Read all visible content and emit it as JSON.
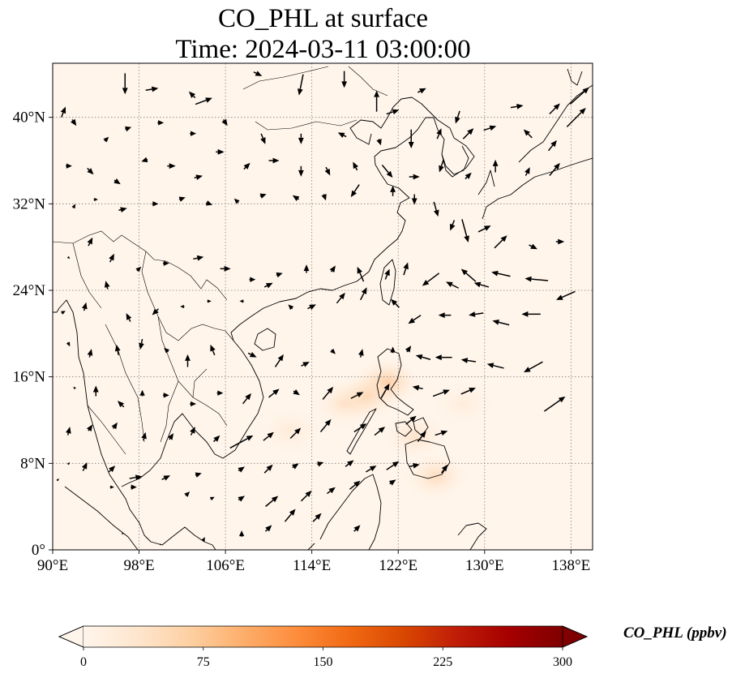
{
  "title": {
    "line1": "CO_PHL at surface",
    "line2": "Time: 2024-03-11 03:00:00"
  },
  "map": {
    "projection": "PlateCarree",
    "lon_range": [
      90,
      140
    ],
    "lat_range": [
      0,
      45
    ],
    "gridlines": "dotted",
    "lon_ticks": [
      {
        "value": 90,
        "label": "90°E"
      },
      {
        "value": 98,
        "label": "98°E"
      },
      {
        "value": 106,
        "label": "106°E"
      },
      {
        "value": 114,
        "label": "114°E"
      },
      {
        "value": 122,
        "label": "122°E"
      },
      {
        "value": 130,
        "label": "130°E"
      },
      {
        "value": 138,
        "label": "138°E"
      }
    ],
    "lat_ticks": [
      {
        "value": 0,
        "label": "0°"
      },
      {
        "value": 8,
        "label": "8°N"
      },
      {
        "value": 16,
        "label": "16°N"
      },
      {
        "value": 24,
        "label": "24°N"
      },
      {
        "value": 32,
        "label": "32°N"
      },
      {
        "value": 40,
        "label": "40°N"
      }
    ],
    "background_color": "#fff5eb",
    "coast_color": "#000000",
    "plumes": [
      {
        "lon": 121.0,
        "lat": 15.5,
        "strength": 0.55
      },
      {
        "lon": 119.0,
        "lat": 14.2,
        "strength": 0.4
      },
      {
        "lon": 117.0,
        "lat": 13.5,
        "strength": 0.25
      },
      {
        "lon": 125.5,
        "lat": 6.8,
        "strength": 0.35
      },
      {
        "lon": 123.5,
        "lat": 10.5,
        "strength": 0.25
      },
      {
        "lon": 112.0,
        "lat": 11.0,
        "strength": 0.15
      },
      {
        "lon": 128.0,
        "lat": 13.5,
        "strength": 0.12
      }
    ]
  },
  "wind_vectors": [
    [
      96.7,
      43.1,
      0,
      -1
    ],
    [
      99.2,
      42.6,
      0.6,
      0.1
    ],
    [
      102.9,
      42.1,
      -0.3,
      0.3
    ],
    [
      104,
      41.5,
      0.8,
      0.3
    ],
    [
      109,
      44,
      0.4,
      -0.2
    ],
    [
      113,
      43,
      -0.2,
      -1
    ],
    [
      117,
      43.5,
      0,
      -0.8
    ],
    [
      120,
      41.5,
      0,
      1
    ],
    [
      121.5,
      40.5,
      0.6,
      0.2
    ],
    [
      124.2,
      42.5,
      0.4,
      0.2
    ],
    [
      127.5,
      40,
      -0.2,
      -0.6
    ],
    [
      133,
      41,
      0.6,
      0.1
    ],
    [
      136.5,
      40.8,
      0.5,
      0.5
    ],
    [
      138.5,
      40,
      0.9,
      0.9
    ],
    [
      138.8,
      42,
      0.9,
      0.8
    ],
    [
      91,
      40.5,
      0.2,
      0.5
    ],
    [
      92,
      39.5,
      0.2,
      -0.3
    ],
    [
      95,
      38,
      0.2,
      0.2
    ],
    [
      97,
      39,
      0.3,
      0.1
    ],
    [
      100,
      39.5,
      0.3,
      0
    ],
    [
      103,
      38.5,
      0.3,
      0
    ],
    [
      106,
      39.5,
      0.2,
      -0.3
    ],
    [
      109.5,
      38,
      0.2,
      -0.5
    ],
    [
      113,
      38,
      0,
      -0.5
    ],
    [
      116.8,
      38.4,
      -0.4,
      0.2
    ],
    [
      120.3,
      37.7,
      0.1,
      -0.3
    ],
    [
      123.2,
      38,
      0,
      -0.9
    ],
    [
      125.8,
      38.5,
      0.2,
      0.5
    ],
    [
      128.5,
      38.5,
      0.5,
      0.5
    ],
    [
      130.5,
      39,
      0.6,
      0.2
    ],
    [
      134,
      38.5,
      -0.4,
      0.4
    ],
    [
      136.3,
      37.4,
      0.4,
      0.5
    ],
    [
      91.5,
      35.5,
      0.3,
      0
    ],
    [
      93.5,
      35,
      0.3,
      -0.3
    ],
    [
      96,
      34,
      0.3,
      -0.2
    ],
    [
      98.5,
      36,
      -0.3,
      -0.1
    ],
    [
      101,
      35.5,
      0.4,
      0
    ],
    [
      103.5,
      34.5,
      0.4,
      0.1
    ],
    [
      105.5,
      36.8,
      0.4,
      0
    ],
    [
      108,
      35.5,
      0.3,
      0.3
    ],
    [
      110.5,
      36,
      0.5,
      0
    ],
    [
      113,
      35,
      0,
      -0.5
    ],
    [
      115.5,
      35,
      0.2,
      -0.4
    ],
    [
      118,
      35.5,
      -0.2,
      0.4
    ],
    [
      121,
      35,
      0.5,
      -0.6
    ],
    [
      123.5,
      34.5,
      0.5,
      0
    ],
    [
      126,
      35.5,
      -0.2,
      -0.6
    ],
    [
      128.5,
      34.6,
      0.3,
      0.3
    ],
    [
      131,
      35.5,
      0,
      0.6
    ],
    [
      134,
      35,
      0.2,
      0.4
    ],
    [
      136.5,
      35.2,
      0.5,
      0.6
    ],
    [
      92,
      31.8,
      0.1,
      0.2
    ],
    [
      94,
      32.4,
      0.2,
      0
    ],
    [
      96.5,
      31.5,
      0.4,
      0.1
    ],
    [
      99.5,
      32,
      0.3,
      0
    ],
    [
      102,
      32.5,
      0.3,
      0.1
    ],
    [
      104.5,
      32,
      0.3,
      -0.1
    ],
    [
      107,
      32.3,
      -0.2,
      0.2
    ],
    [
      109.5,
      32.8,
      0.3,
      0.1
    ],
    [
      112.5,
      32.6,
      -0.3,
      0.2
    ],
    [
      115.2,
      32.6,
      0.1,
      -0.3
    ],
    [
      118,
      33.2,
      -0.4,
      -0.6
    ],
    [
      121.5,
      33.2,
      0,
      0.5
    ],
    [
      123.5,
      32.4,
      0,
      -0.5
    ],
    [
      125.5,
      31.5,
      0.2,
      -0.7
    ],
    [
      127,
      30,
      -0.2,
      -0.5
    ],
    [
      128.2,
      29.5,
      0.3,
      -1.1
    ],
    [
      130,
      29.7,
      0.6,
      0.3
    ],
    [
      131.5,
      28.5,
      0.6,
      0.6
    ],
    [
      134.5,
      28,
      0.4,
      -0.2
    ],
    [
      137,
      28.5,
      0.4,
      0
    ],
    [
      91.5,
      27,
      0.1,
      -0.1
    ],
    [
      93.5,
      28.5,
      0.2,
      0.4
    ],
    [
      95.5,
      27,
      0.2,
      0.4
    ],
    [
      98,
      26,
      0.2,
      0.2
    ],
    [
      100.5,
      26.5,
      0.3,
      0
    ],
    [
      103.5,
      27,
      0.5,
      0.1
    ],
    [
      106,
      26,
      0.5,
      0
    ],
    [
      108.5,
      25,
      0.3,
      0
    ],
    [
      111,
      25.5,
      0.3,
      0.1
    ],
    [
      113.5,
      26,
      0,
      0.4
    ],
    [
      116,
      26,
      0.2,
      0.3
    ],
    [
      118.5,
      25.5,
      -0.3,
      0.7
    ],
    [
      121,
      25.5,
      0.2,
      0.5
    ],
    [
      122.7,
      26,
      0.2,
      0.6
    ],
    [
      125,
      25,
      -0.8,
      -0.6
    ],
    [
      127,
      24.5,
      -0.6,
      0.3
    ],
    [
      128.5,
      25.4,
      -0.7,
      0.6
    ],
    [
      129.7,
      24.5,
      -0.7,
      0.2
    ],
    [
      131.5,
      25.5,
      -0.9,
      0.2
    ],
    [
      134.8,
      25,
      -1.1,
      0.1
    ],
    [
      137.5,
      23.5,
      -0.9,
      -0.4
    ],
    [
      91,
      22,
      0.2,
      0.1
    ],
    [
      93,
      22.5,
      0.1,
      0.4
    ],
    [
      95,
      24.5,
      -0.1,
      0.4
    ],
    [
      97,
      21.5,
      -0.2,
      0.4
    ],
    [
      99.5,
      22,
      -0.3,
      -0.3
    ],
    [
      102,
      22.5,
      -0.2,
      0
    ],
    [
      104.5,
      23,
      0.2,
      0
    ],
    [
      107.5,
      23,
      -0.2,
      0
    ],
    [
      110,
      24.5,
      0.4,
      0.2
    ],
    [
      112,
      22.5,
      -0.2,
      0.2
    ],
    [
      114,
      22.5,
      0.4,
      0.2
    ],
    [
      116.7,
      23.3,
      0.4,
      0.5
    ],
    [
      118.8,
      23.7,
      0.3,
      0.6
    ],
    [
      121.7,
      22.8,
      -0.4,
      0.4
    ],
    [
      123.5,
      21.3,
      -0.6,
      -0.4
    ],
    [
      126.3,
      21.7,
      -0.6,
      0
    ],
    [
      129.2,
      21.8,
      -0.7,
      -0.1
    ],
    [
      131.5,
      21,
      -0.8,
      0.2
    ],
    [
      134.3,
      21.8,
      -0.9,
      0
    ],
    [
      91.5,
      19,
      0.1,
      -0.2
    ],
    [
      93.5,
      18.2,
      0.1,
      0.4
    ],
    [
      96,
      18.5,
      -0.1,
      0.5
    ],
    [
      98.2,
      19,
      -0.1,
      -0.5
    ],
    [
      100.5,
      18.5,
      -0.2,
      0.2
    ],
    [
      102.5,
      17.5,
      0,
      0.6
    ],
    [
      104.8,
      18.5,
      -0.2,
      0.5
    ],
    [
      108.5,
      18,
      0.4,
      -0.2
    ],
    [
      111,
      17.5,
      0.4,
      0.6
    ],
    [
      113.4,
      17.2,
      0.4,
      0.2
    ],
    [
      116,
      18.3,
      0.2,
      -0.2
    ],
    [
      118.6,
      18.2,
      0.1,
      0.4
    ],
    [
      121.5,
      18.5,
      0,
      0.3
    ],
    [
      123,
      18.6,
      0.2,
      0.3
    ],
    [
      124.3,
      17.8,
      -0.7,
      0.2
    ],
    [
      126.2,
      17.8,
      -0.8,
      0
    ],
    [
      128.5,
      17.5,
      -0.7,
      0.1
    ],
    [
      131,
      17,
      -0.8,
      0.2
    ],
    [
      134.5,
      16.9,
      -0.9,
      -0.5
    ],
    [
      92,
      15,
      -0.1,
      0.1
    ],
    [
      94,
      14.7,
      0,
      0.5
    ],
    [
      96.3,
      13.5,
      -0.3,
      0.3
    ],
    [
      98.3,
      14.5,
      0,
      0.3
    ],
    [
      100.5,
      14.3,
      0.3,
      0
    ],
    [
      103,
      13.5,
      0.3,
      0
    ],
    [
      105.5,
      14.5,
      0.3,
      0
    ],
    [
      108,
      14,
      0.4,
      0.5
    ],
    [
      110.5,
      14.5,
      0.5,
      0.4
    ],
    [
      112.6,
      14.5,
      0.3,
      -0.2
    ],
    [
      115.5,
      14.5,
      0.5,
      0.6
    ],
    [
      118.2,
      14.3,
      0.6,
      0.3
    ],
    [
      120.8,
      14.7,
      0.4,
      0.7
    ],
    [
      123.8,
      15,
      -0.5,
      0.1
    ],
    [
      126,
      14.5,
      0.8,
      0.3
    ],
    [
      128.5,
      14.7,
      0.7,
      0.3
    ],
    [
      136.5,
      13.5,
      1.0,
      0.7
    ],
    [
      91.5,
      11,
      0.1,
      0.4
    ],
    [
      93.5,
      11.3,
      0.2,
      0.3
    ],
    [
      95.8,
      11.5,
      0.2,
      0.3
    ],
    [
      98.5,
      10.5,
      0.1,
      0.4
    ],
    [
      101,
      10.5,
      0.2,
      0.3
    ],
    [
      103,
      11,
      0.2,
      0.4
    ],
    [
      105.2,
      10.3,
      0.3,
      0.3
    ],
    [
      107.5,
      10,
      1.1,
      0.6
    ],
    [
      110,
      10.5,
      0.5,
      0.4
    ],
    [
      112.5,
      10.8,
      0.5,
      0.5
    ],
    [
      115.3,
      11.5,
      0.5,
      0.6
    ],
    [
      118.5,
      11.3,
      0.6,
      0.4
    ],
    [
      120.3,
      11,
      0.5,
      0.4
    ],
    [
      123.2,
      12,
      0.5,
      0.4
    ],
    [
      124.2,
      10.5,
      0.4,
      0.5
    ],
    [
      126,
      10.8,
      0.6,
      0.2
    ],
    [
      91.5,
      8,
      0.1,
      0.1
    ],
    [
      93,
      7.7,
      0.2,
      0.4
    ],
    [
      95.5,
      7.5,
      0.3,
      0.3
    ],
    [
      97.7,
      6.7,
      0.6,
      0.1
    ],
    [
      100.5,
      6.7,
      0.4,
      0.2
    ],
    [
      103.5,
      7,
      0.3,
      0.1
    ],
    [
      107.5,
      7.5,
      0.3,
      0.2
    ],
    [
      110,
      7.5,
      0.4,
      0.4
    ],
    [
      112.5,
      7.8,
      0.3,
      0.2
    ],
    [
      114.8,
      8,
      0.3,
      0.1
    ],
    [
      117.5,
      8,
      0.4,
      0.3
    ],
    [
      119.5,
      7.5,
      0.5,
      0.3
    ],
    [
      121.5,
      7.8,
      0.6,
      0.4
    ],
    [
      123.5,
      7.8,
      0.5,
      0.1
    ],
    [
      126.3,
      7.5,
      0.3,
      0.4
    ],
    [
      90.5,
      6.5,
      0.1,
      0.1
    ],
    [
      95.5,
      5.8,
      0.2,
      0
    ],
    [
      97.5,
      5.8,
      0.3,
      0
    ],
    [
      102.5,
      5.2,
      0.2,
      0.2
    ],
    [
      104.8,
      4.8,
      0.2,
      0.1
    ],
    [
      107.5,
      4.8,
      0.3,
      0.2
    ],
    [
      110.3,
      4.5,
      0.6,
      0.5
    ],
    [
      113.5,
      5,
      0.5,
      0.5
    ],
    [
      115.8,
      5.5,
      0.4,
      0.3
    ],
    [
      118,
      6,
      0.5,
      0.4
    ],
    [
      121.5,
      6.3,
      0.3,
      0.2
    ],
    [
      96.5,
      1.5,
      0.1,
      0
    ],
    [
      100,
      0.5,
      0.1,
      0
    ],
    [
      104,
      1,
      0.1,
      0.2
    ],
    [
      107.5,
      1.5,
      0,
      0.3
    ],
    [
      110,
      2,
      0.3,
      0.3
    ],
    [
      112,
      3.2,
      0.5,
      0.6
    ],
    [
      114.5,
      3,
      0.4,
      0.4
    ],
    [
      118.2,
      2,
      0.3,
      0.3
    ]
  ],
  "colorbar": {
    "label": "CO_PHL (ppbv)",
    "cmap": "OrRd",
    "ticks": [
      {
        "value": 0,
        "label": "0"
      },
      {
        "value": 75,
        "label": "75"
      },
      {
        "value": 150,
        "label": "150"
      },
      {
        "value": 225,
        "label": "225"
      },
      {
        "value": 300,
        "label": "300"
      }
    ],
    "range": [
      0,
      300
    ],
    "extend": "both",
    "colors": [
      "#fff5eb",
      "#fee6ce",
      "#fdd0a2",
      "#fdae6b",
      "#fd8d3c",
      "#f16913",
      "#d94801",
      "#c01d08",
      "#a50000",
      "#7f0000"
    ]
  }
}
